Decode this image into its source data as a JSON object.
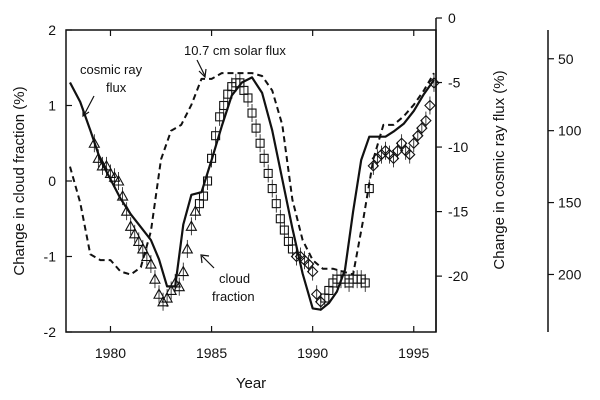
{
  "chart_data": {
    "type": "line",
    "xlabel": "Year",
    "ylabel_left": "Change in cloud fraction (%)",
    "ylabel_right_1": "Change in cosmic ray flux (%)",
    "ylabel_right_2": "",
    "x_ticks": [
      "1980",
      "1985",
      "1990",
      "1995"
    ],
    "y_left_ticks": [
      "2",
      "1",
      "0",
      "-1",
      "-2"
    ],
    "y_right1_ticks": [
      "0",
      "-5",
      "-10",
      "-15",
      "-20"
    ],
    "y_right2_ticks": [
      "50",
      "100",
      "150",
      "200"
    ],
    "xlim": [
      1977.8,
      1996.1
    ],
    "ylim_left": [
      -2,
      2
    ],
    "ylim_right1": [
      -23.4,
      0
    ],
    "ylim_right2": [
      30,
      240
    ],
    "annotations": {
      "solar": "10.7 cm solar flux",
      "cosmic_1": "cosmic ray",
      "cosmic_2": "flux",
      "cloud_1": "cloud",
      "cloud_2": "fraction"
    },
    "series": [
      {
        "key": "cosmic",
        "axis": "right1",
        "style": "solid",
        "x": [
          1978.0,
          1978.5,
          1979.0,
          1979.5,
          1980.0,
          1980.5,
          1981.0,
          1981.5,
          1982.0,
          1982.4,
          1982.8,
          1983.2,
          1983.6,
          1984.0,
          1984.5,
          1985.0,
          1985.5,
          1986.0,
          1986.5,
          1987.0,
          1987.5,
          1988.0,
          1988.5,
          1989.0,
          1989.5,
          1990.0,
          1990.4,
          1990.8,
          1991.2,
          1991.6,
          1992.0,
          1992.4,
          1992.8,
          1993.2,
          1993.6,
          1994.0,
          1994.5,
          1995.0,
          1995.5,
          1996.0
        ],
        "y": [
          -5.0,
          -6.5,
          -8.7,
          -11.0,
          -12.5,
          -14.0,
          -15.2,
          -16.2,
          -17.2,
          -18.7,
          -20.8,
          -20.8,
          -16.0,
          -13.7,
          -13.5,
          -11.0,
          -8.4,
          -6.0,
          -5.0,
          -4.6,
          -5.8,
          -8.7,
          -12.5,
          -16.3,
          -19.8,
          -22.5,
          -22.6,
          -22.1,
          -21.2,
          -19.5,
          -15.0,
          -11.0,
          -9.2,
          -9.2,
          -9.2,
          -8.8,
          -8.2,
          -7.2,
          -5.9,
          -4.8
        ]
      },
      {
        "key": "solar",
        "axis": "right2",
        "style": "dashed",
        "x": [
          1978.0,
          1978.5,
          1979.0,
          1979.5,
          1980.0,
          1980.5,
          1981.0,
          1981.5,
          1982.0,
          1982.5,
          1983.0,
          1983.5,
          1984.0,
          1984.5,
          1985.0,
          1985.5,
          1986.0,
          1986.5,
          1987.0,
          1987.5,
          1988.0,
          1988.5,
          1989.0,
          1989.5,
          1990.0,
          1990.5,
          1991.0,
          1991.5,
          1992.0,
          1992.5,
          1993.0,
          1993.5,
          1994.0,
          1994.5,
          1995.0,
          1995.5,
          1996.0
        ],
        "y": [
          125,
          150,
          186,
          190,
          190,
          198,
          200,
          195,
          170,
          120,
          100,
          96,
          82,
          64,
          64,
          60,
          60,
          60,
          60,
          62,
          72,
          96,
          148,
          176,
          190,
          196,
          196,
          198,
          200,
          162,
          120,
          96,
          96,
          90,
          82,
          72,
          60
        ]
      },
      {
        "key": "cloud",
        "axis": "left",
        "style": "markers",
        "x": [
          1979.2,
          1979.4,
          1979.6,
          1979.8,
          1980.0,
          1980.2,
          1980.4,
          1980.6,
          1980.8,
          1981.0,
          1981.2,
          1981.4,
          1981.6,
          1981.8,
          1982.0,
          1982.2,
          1982.4,
          1982.6,
          1982.8,
          1983.0,
          1983.2,
          1983.4,
          1983.6,
          1983.8,
          1984.0,
          1984.2,
          1984.4,
          1984.6,
          1984.8,
          1985.0,
          1985.2,
          1985.4,
          1985.6,
          1985.8,
          1986.0,
          1986.2,
          1986.4,
          1986.6,
          1986.8,
          1987.0,
          1987.2,
          1987.4,
          1987.6,
          1987.8,
          1988.0,
          1988.2,
          1988.4,
          1988.6,
          1988.8,
          1989.0,
          1989.2,
          1989.4,
          1989.6,
          1989.8,
          1990.0,
          1990.2,
          1990.4,
          1990.6,
          1990.8,
          1991.0,
          1991.2,
          1991.4,
          1991.6,
          1991.8,
          1992.0,
          1992.2,
          1992.4,
          1992.6,
          1992.8,
          1993.0,
          1993.2,
          1993.4,
          1993.6,
          1993.8,
          1994.0,
          1994.2,
          1994.4,
          1994.6,
          1994.8,
          1995.0,
          1995.2,
          1995.4,
          1995.6,
          1995.8,
          1996.0
        ],
        "y": [
          0.5,
          0.3,
          0.2,
          0.2,
          0.1,
          0.05,
          0.0,
          -0.2,
          -0.4,
          -0.6,
          -0.7,
          -0.8,
          -0.9,
          -1.0,
          -1.1,
          -1.3,
          -1.5,
          -1.6,
          -1.55,
          -1.45,
          -1.35,
          -1.4,
          -1.2,
          -0.9,
          -0.6,
          -0.4,
          -0.3,
          -0.2,
          0.0,
          0.3,
          0.6,
          0.85,
          1.0,
          1.15,
          1.25,
          1.3,
          1.3,
          1.2,
          1.1,
          0.9,
          0.7,
          0.5,
          0.3,
          0.1,
          -0.1,
          -0.3,
          -0.5,
          -0.65,
          -0.8,
          -0.9,
          -1.0,
          -1.0,
          -1.05,
          -1.1,
          -1.2,
          -1.5,
          -1.6,
          -1.55,
          -1.45,
          -1.35,
          -1.3,
          -1.3,
          -1.3,
          -1.35,
          -1.3,
          -1.3,
          -1.3,
          -1.35,
          -0.1,
          0.2,
          0.3,
          0.35,
          0.4,
          0.35,
          0.3,
          0.4,
          0.5,
          0.4,
          0.35,
          0.5,
          0.6,
          0.7,
          0.8,
          1.0,
          1.3
        ]
      }
    ]
  }
}
